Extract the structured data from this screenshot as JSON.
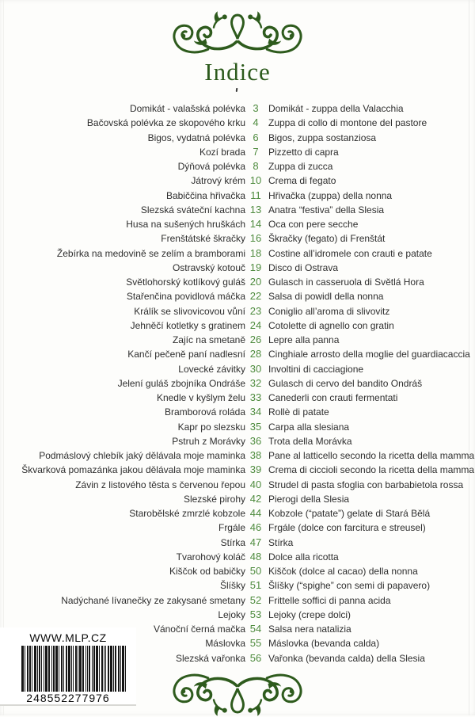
{
  "page": {
    "title": "Indice"
  },
  "colors": {
    "ornament_green": "#2e5b1d",
    "title_green": "#2c5a1c",
    "number_green": "#4e8b3e",
    "text": "#2e2e2e"
  },
  "index": {
    "rows": [
      {
        "cz": "Domikát - valašská polévka",
        "page": "3",
        "it": "Domikát - zuppa della Valacchia"
      },
      {
        "cz": "Bačovská polévka ze skopového krku",
        "page": "4",
        "it": "Zuppa di collo di montone del pastore"
      },
      {
        "cz": "Bigos, vydatná polévka",
        "page": "6",
        "it": "Bigos, zuppa sostanziosa"
      },
      {
        "cz": "Kozí brada",
        "page": "7",
        "it": "Pizzetto di capra"
      },
      {
        "cz": "Dýňová polévka",
        "page": "8",
        "it": "Zuppa di zucca"
      },
      {
        "cz": "Játrový krém",
        "page": "10",
        "it": "Crema di fegato"
      },
      {
        "cz": "Babiččina hřivačka",
        "page": "11",
        "it": "Hřivačka (zuppa) della nonna"
      },
      {
        "cz": "Slezská sváteční kachna",
        "page": "13",
        "it": "Anatra “festiva” della Slesia"
      },
      {
        "cz": "Husa na sušených hruškách",
        "page": "14",
        "it": "Oca con pere secche"
      },
      {
        "cz": "Frenštátské škračky",
        "page": "16",
        "it": "Škračky (fegato) di Frenštát"
      },
      {
        "cz": "Žebírka na medovině se zelím a bramborami",
        "page": "18",
        "it": "Costine all’idromele con crauti e patate"
      },
      {
        "cz": "Ostravský kotouč",
        "page": "19",
        "it": "Disco di Ostrava"
      },
      {
        "cz": "Světlohorský kotlíkový guláš",
        "page": "20",
        "it": "Gulasch in casseruola di Světlá Hora"
      },
      {
        "cz": "Stařenčina povidlová máčka",
        "page": "22",
        "it": "Salsa di powidl della nonna"
      },
      {
        "cz": "Králík se slivovicovou vůní",
        "page": "23",
        "it": "Coniglio all’aroma di slivovitz"
      },
      {
        "cz": "Jehněčí kotletky s gratinem",
        "page": "24",
        "it": "Cotolette di agnello con gratin"
      },
      {
        "cz": "Zajíc na smetaně",
        "page": "26",
        "it": "Lepre alla panna"
      },
      {
        "cz": "Kančí pečeně paní nadlesní",
        "page": "28",
        "it": "Cinghiale arrosto della moglie del guardiacaccia"
      },
      {
        "cz": "Lovecké závitky",
        "page": "30",
        "it": "Involtini di cacciagione"
      },
      {
        "cz": "Jelení guláš zbojníka Ondráše",
        "page": "32",
        "it": "Gulasch di cervo del bandito Ondráš"
      },
      {
        "cz": "Knedle v kyšlym želu",
        "page": "33",
        "it": "Canederli con crauti fermentati"
      },
      {
        "cz": "Bramborová roláda",
        "page": "34",
        "it": "Rollè di patate"
      },
      {
        "cz": "Kapr po slezsku",
        "page": "35",
        "it": "Carpa alla slesiana"
      },
      {
        "cz": "Pstruh z Morávky",
        "page": "36",
        "it": "Trota della Morávka"
      },
      {
        "cz": "Podmáslový chlebík jaký dělávala moje maminka",
        "page": "38",
        "it": "Pane al latticello secondo la ricetta della mamma"
      },
      {
        "cz": "Škvarková pomazánka jakou dělávala moje maminka",
        "page": "39",
        "it": "Crema di ciccioli secondo la ricetta della mamma"
      },
      {
        "cz": "Závin z listového těsta s červenou řepou",
        "page": "40",
        "it": "Strudel di pasta sfoglia con barbabietola rossa"
      },
      {
        "cz": "Slezské pirohy",
        "page": "42",
        "it": "Pierogi della Slesia"
      },
      {
        "cz": "Starobělské zmrzlé kobzole",
        "page": "44",
        "it": "Kobzole (“patate”) gelate di Stará Bělá"
      },
      {
        "cz": "Frgále",
        "page": "46",
        "it": "Frgále (dolce con farcitura e streusel)"
      },
      {
        "cz": "Stírka",
        "page": "47",
        "it": "Stírka"
      },
      {
        "cz": "Tvarohový koláč",
        "page": "48",
        "it": "Dolce alla ricotta"
      },
      {
        "cz": "Kiščok od babičky",
        "page": "50",
        "it": "Kiščok (dolce al cacao) della nonna"
      },
      {
        "cz": "Šlíšky",
        "page": "51",
        "it": "Šlíšky (“spighe” con semi di papavero)"
      },
      {
        "cz": "Nadýchané lívanečky ze zakysané smetany",
        "page": "52",
        "it": "Frittelle soffici di panna acida"
      },
      {
        "cz": "Lejoky",
        "page": "53",
        "it": "Lejoky (crepe dolci)"
      },
      {
        "cz": "Vánoční černá mačka",
        "page": "54",
        "it": "Salsa nera natalizia"
      },
      {
        "cz": "Máslovka",
        "page": "55",
        "it": "Máslovka (bevanda calda)"
      },
      {
        "cz": "Slezská vařonka",
        "page": "56",
        "it": "Vařonka (bevanda calda) della Slesia"
      }
    ]
  },
  "barcode": {
    "url": "WWW.MLP.CZ",
    "digits": "248552277976"
  }
}
